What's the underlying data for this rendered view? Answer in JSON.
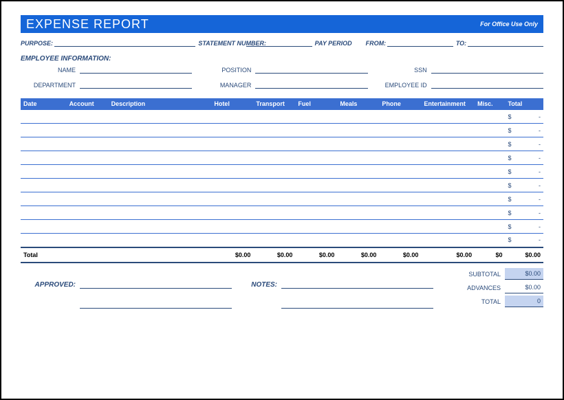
{
  "title": "EXPENSE REPORT",
  "office_use_label": "For Office Use Only",
  "meta": {
    "purpose_label": "PURPOSE:",
    "statement_label": "STATEMENT NUMBER:",
    "pay_period_label": "PAY PERIOD",
    "from_label": "FROM:",
    "to_label": "TO:"
  },
  "employee_section": "EMPLOYEE INFORMATION:",
  "employee": {
    "name_label": "NAME",
    "position_label": "POSITION",
    "ssn_label": "SSN",
    "department_label": "DEPARTMENT",
    "manager_label": "MANAGER",
    "employee_id_label": "EMPLOYEE ID"
  },
  "columns": [
    "Date",
    "Account",
    "Description",
    "Hotel",
    "Transport",
    "Fuel",
    "Meals",
    "Phone",
    "Entertainment",
    "Misc.",
    "Total"
  ],
  "rows": [
    {
      "total_sym": "$",
      "total_dash": "-"
    },
    {
      "total_sym": "$",
      "total_dash": "-"
    },
    {
      "total_sym": "$",
      "total_dash": "-"
    },
    {
      "total_sym": "$",
      "total_dash": "-"
    },
    {
      "total_sym": "$",
      "total_dash": "-"
    },
    {
      "total_sym": "$",
      "total_dash": "-"
    },
    {
      "total_sym": "$",
      "total_dash": "-"
    },
    {
      "total_sym": "$",
      "total_dash": "-"
    },
    {
      "total_sym": "$",
      "total_dash": "-"
    },
    {
      "total_sym": "$",
      "total_dash": "-"
    }
  ],
  "totals_row": {
    "label": "Total",
    "hotel": "$0.00",
    "transport": "$0.00",
    "fuel": "$0.00",
    "meals": "$0.00",
    "phone": "$0.00",
    "entertainment": "$0.00",
    "misc": "$0",
    "total": "$0.00"
  },
  "bottom": {
    "approved_label": "APPROVED:",
    "notes_label": "NOTES:",
    "subtotal_label": "SUBTOTAL",
    "subtotal_value": "$0.00",
    "advances_label": "ADVANCES",
    "advances_value": "$0.00",
    "total_label": "TOTAL",
    "total_value": "0"
  },
  "colors": {
    "header_bg": "#1565d8",
    "table_header_bg": "#3b6fd1",
    "border": "#3b6fd1",
    "text": "#2a4a7a",
    "fill": "#c5d4f0"
  }
}
